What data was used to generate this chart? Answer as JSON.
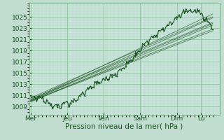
{
  "xlabel": "Pression niveau de la mer( hPa )",
  "bg_color": "#c0ddd0",
  "plot_bg_color": "#c8e4d8",
  "grid_color_minor": "#a8ccc0",
  "grid_color_major": "#80b090",
  "line_color": "#1a5020",
  "yticks": [
    1009,
    1011,
    1013,
    1015,
    1017,
    1019,
    1021,
    1023,
    1025
  ],
  "ylim": [
    1007.5,
    1027.0
  ],
  "xtick_labels": [
    "Mer",
    "Jeu",
    "Ven",
    "Sam",
    "Dim",
    "Lu"
  ],
  "xtick_positions": [
    0,
    48,
    96,
    144,
    192,
    224
  ],
  "total_points": 240,
  "xlabel_fontsize": 7.5,
  "ytick_fontsize": 6.5,
  "xtick_fontsize": 6.5,
  "trend_starts": [
    1010.2,
    1010.0,
    1009.8,
    1009.9,
    1010.3,
    1010.5,
    1010.1,
    1010.0
  ],
  "trend_ends": [
    1025.5,
    1024.8,
    1023.5,
    1022.5,
    1024.0,
    1025.0,
    1023.8,
    1022.8
  ]
}
